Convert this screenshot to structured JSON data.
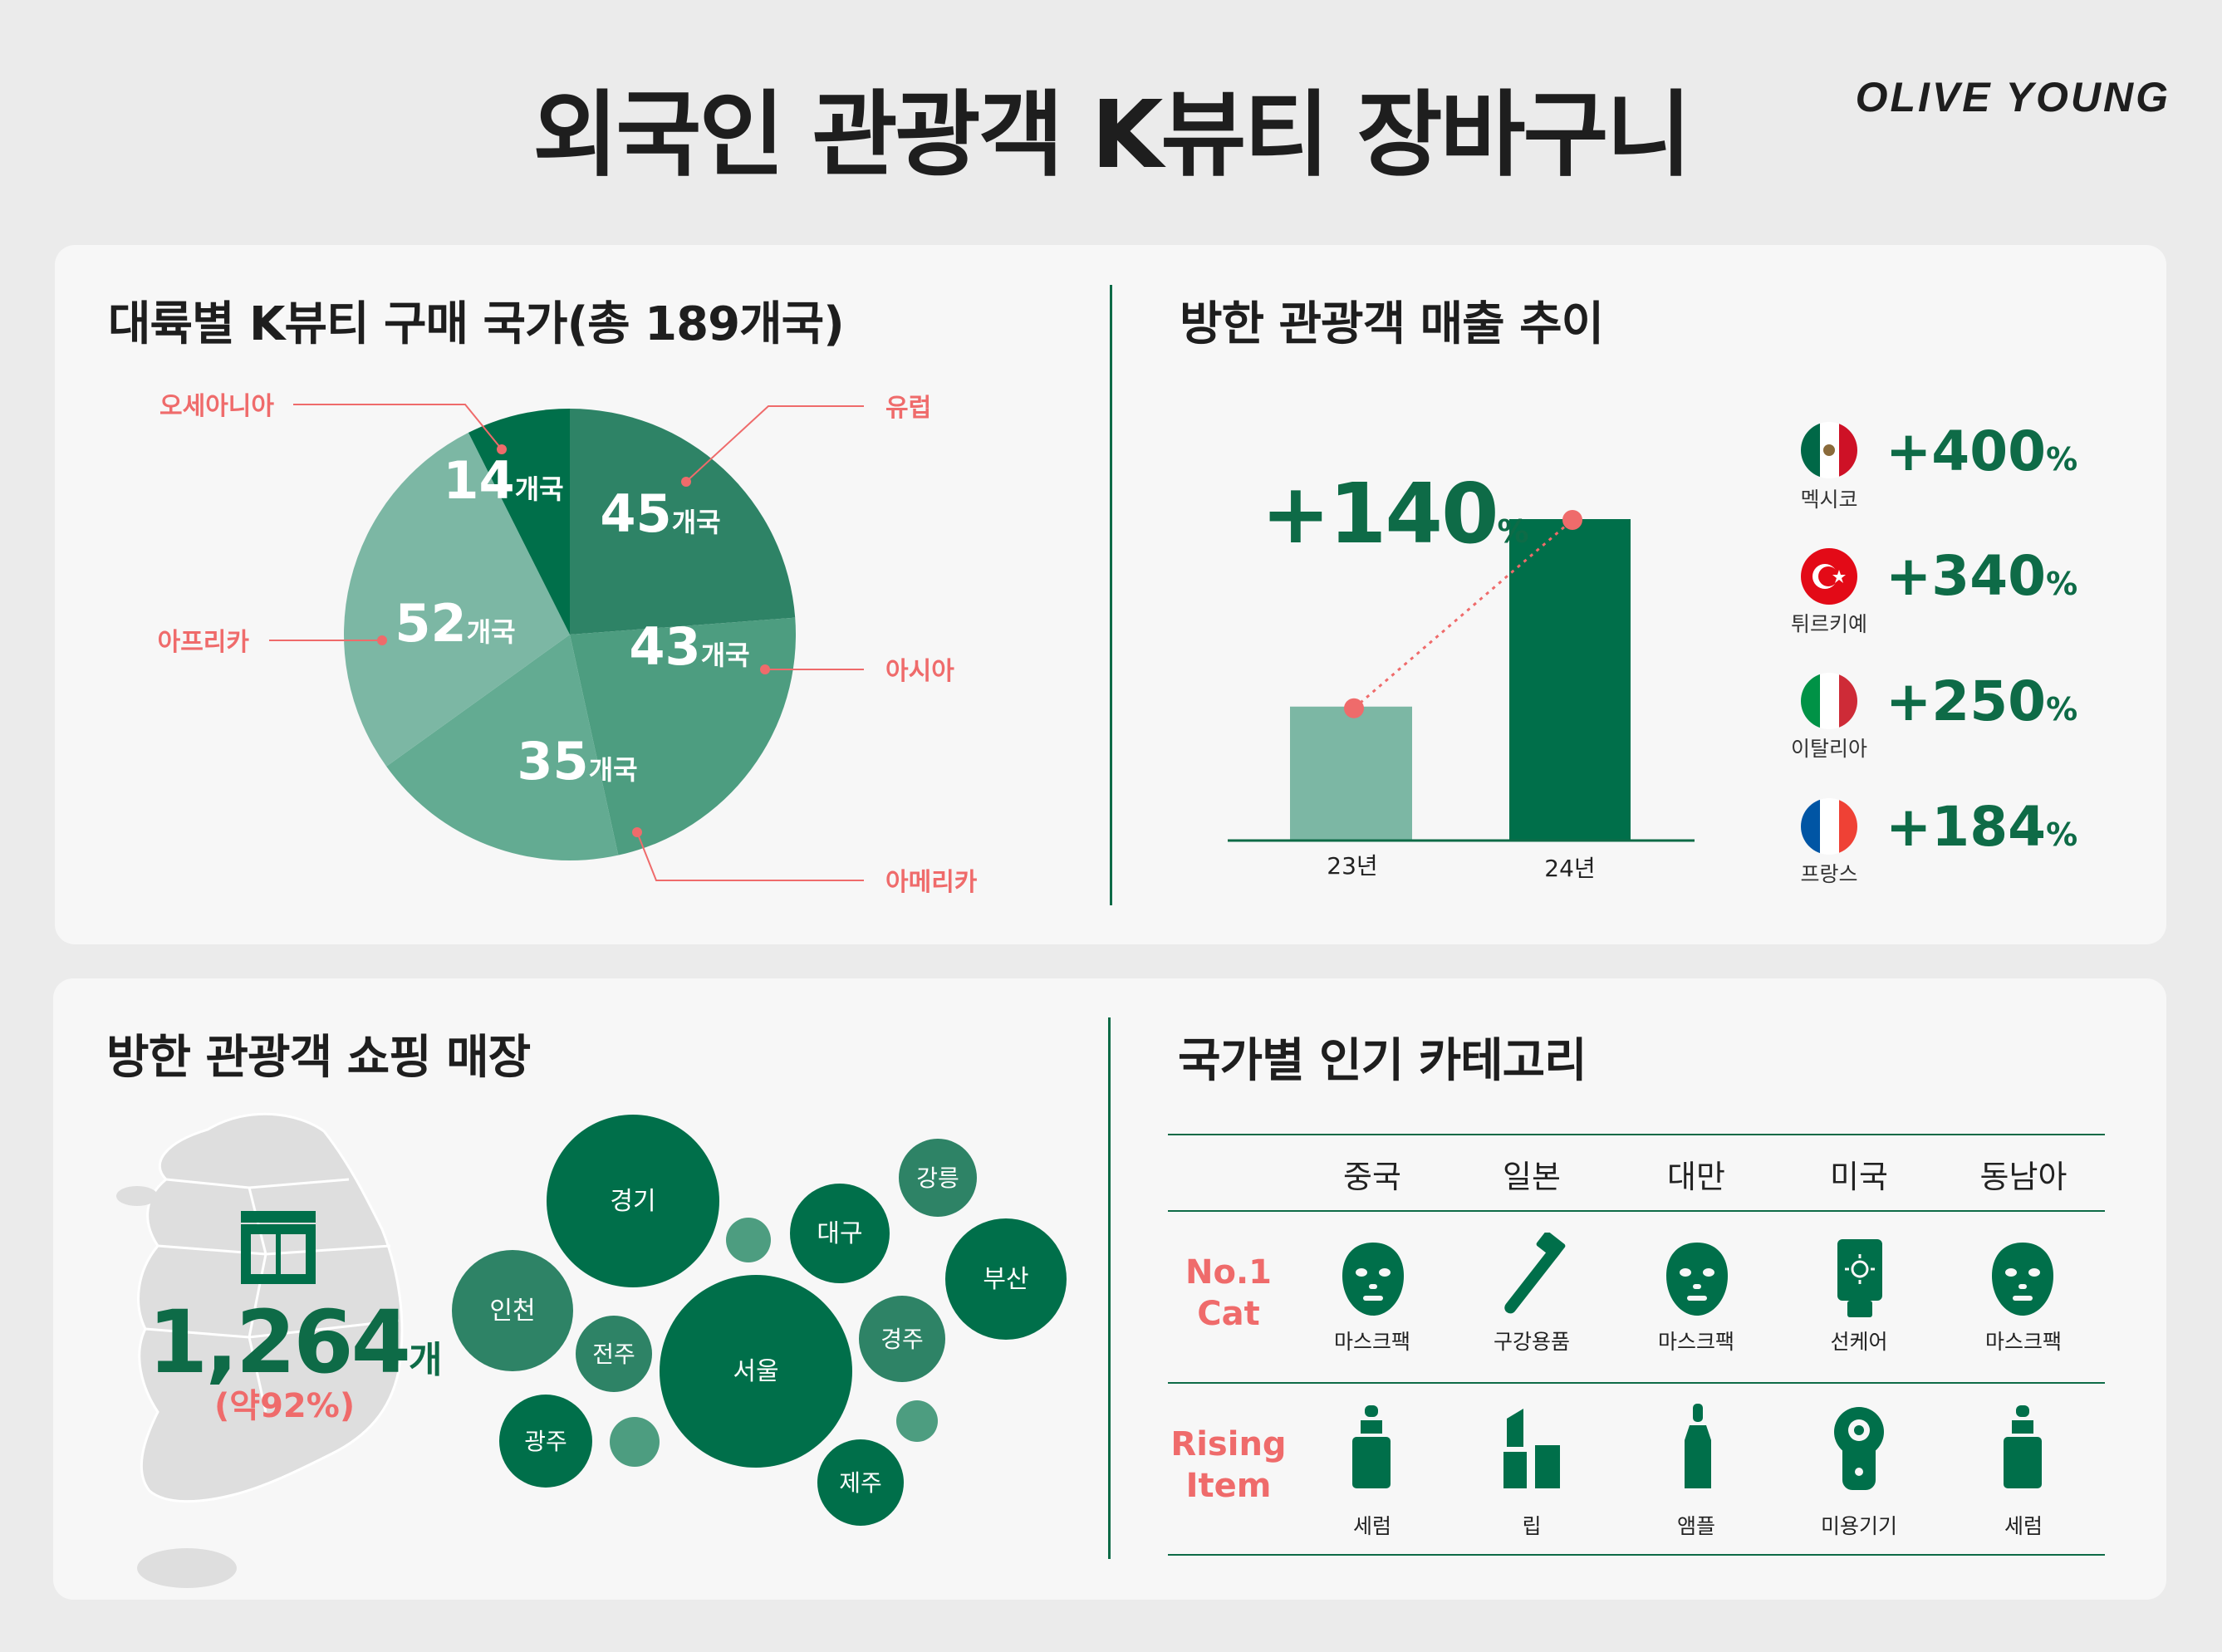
{
  "header": {
    "title": "외국인 관광객 K뷰티 장바구니",
    "brand": "OLIVE YOUNG"
  },
  "colors": {
    "accent_dark": "#006f4a",
    "accent_mid": "#4d9d80",
    "accent_light": "#7cb7a4",
    "highlight": "#ef6b6b",
    "background": "#ebebeb",
    "card": "#f7f7f7"
  },
  "continents": {
    "title": "대륙별 K뷰티 구매 국가(총 189개국)",
    "unit": "개국",
    "slices": [
      {
        "label": "유럽",
        "value": 45,
        "text": "45"
      },
      {
        "label": "아시아",
        "value": 43,
        "text": "43"
      },
      {
        "label": "아메리카",
        "value": 35,
        "text": "35"
      },
      {
        "label": "아프리카",
        "value": 52,
        "text": "52"
      },
      {
        "label": "오세아니아",
        "value": 14,
        "text": "14"
      }
    ]
  },
  "sales": {
    "title": "방한 관광객 매출 추이",
    "growth_value": "+140",
    "growth_unit": "%",
    "countries": [
      {
        "name": "멕시코",
        "value": "+400",
        "unit": "%",
        "flag": "mexico-flag"
      },
      {
        "name": "튀르키예",
        "value": "+340",
        "unit": "%",
        "flag": "turkey-flag"
      },
      {
        "name": "이탈리아",
        "value": "+250",
        "unit": "%",
        "flag": "italy-flag"
      },
      {
        "name": "프랑스",
        "value": "+184",
        "unit": "%",
        "flag": "france-flag"
      }
    ]
  },
  "chart_data": {
    "type": "bar",
    "title": "방한 관광객 매출 추이",
    "categories": [
      "23년",
      "24년"
    ],
    "values": [
      100,
      240
    ],
    "annotation": "+140%",
    "xlabel": "",
    "ylabel": ""
  },
  "stores": {
    "title": "방한 관광객 쇼핑 매장",
    "count": "1,264",
    "unit": "개",
    "share": "(약92%)",
    "icon": "store-icon",
    "cities": [
      "경기",
      "인천",
      "서울",
      "대구",
      "강릉",
      "부산",
      "전주",
      "경주",
      "광주",
      "제주"
    ]
  },
  "categories": {
    "title": "국가별 인기 카테고리",
    "countries": [
      "중국",
      "일본",
      "대만",
      "미국",
      "동남아"
    ],
    "row1_label": "No.1\nCat",
    "row2_label": "Rising\nItem",
    "no1_items": [
      {
        "name": "마스크팩",
        "icon": "mask-pack-icon"
      },
      {
        "name": "구강용품",
        "icon": "toothbrush-icon"
      },
      {
        "name": "마스크팩",
        "icon": "mask-pack-icon"
      },
      {
        "name": "선케어",
        "icon": "sunscreen-icon"
      },
      {
        "name": "마스크팩",
        "icon": "mask-pack-icon"
      }
    ],
    "rising_items": [
      {
        "name": "세럼",
        "icon": "serum-icon"
      },
      {
        "name": "립",
        "icon": "lipstick-icon"
      },
      {
        "name": "앰플",
        "icon": "ampoule-icon"
      },
      {
        "name": "미용기기",
        "icon": "beauty-device-icon"
      },
      {
        "name": "세럼",
        "icon": "serum-icon"
      }
    ]
  }
}
